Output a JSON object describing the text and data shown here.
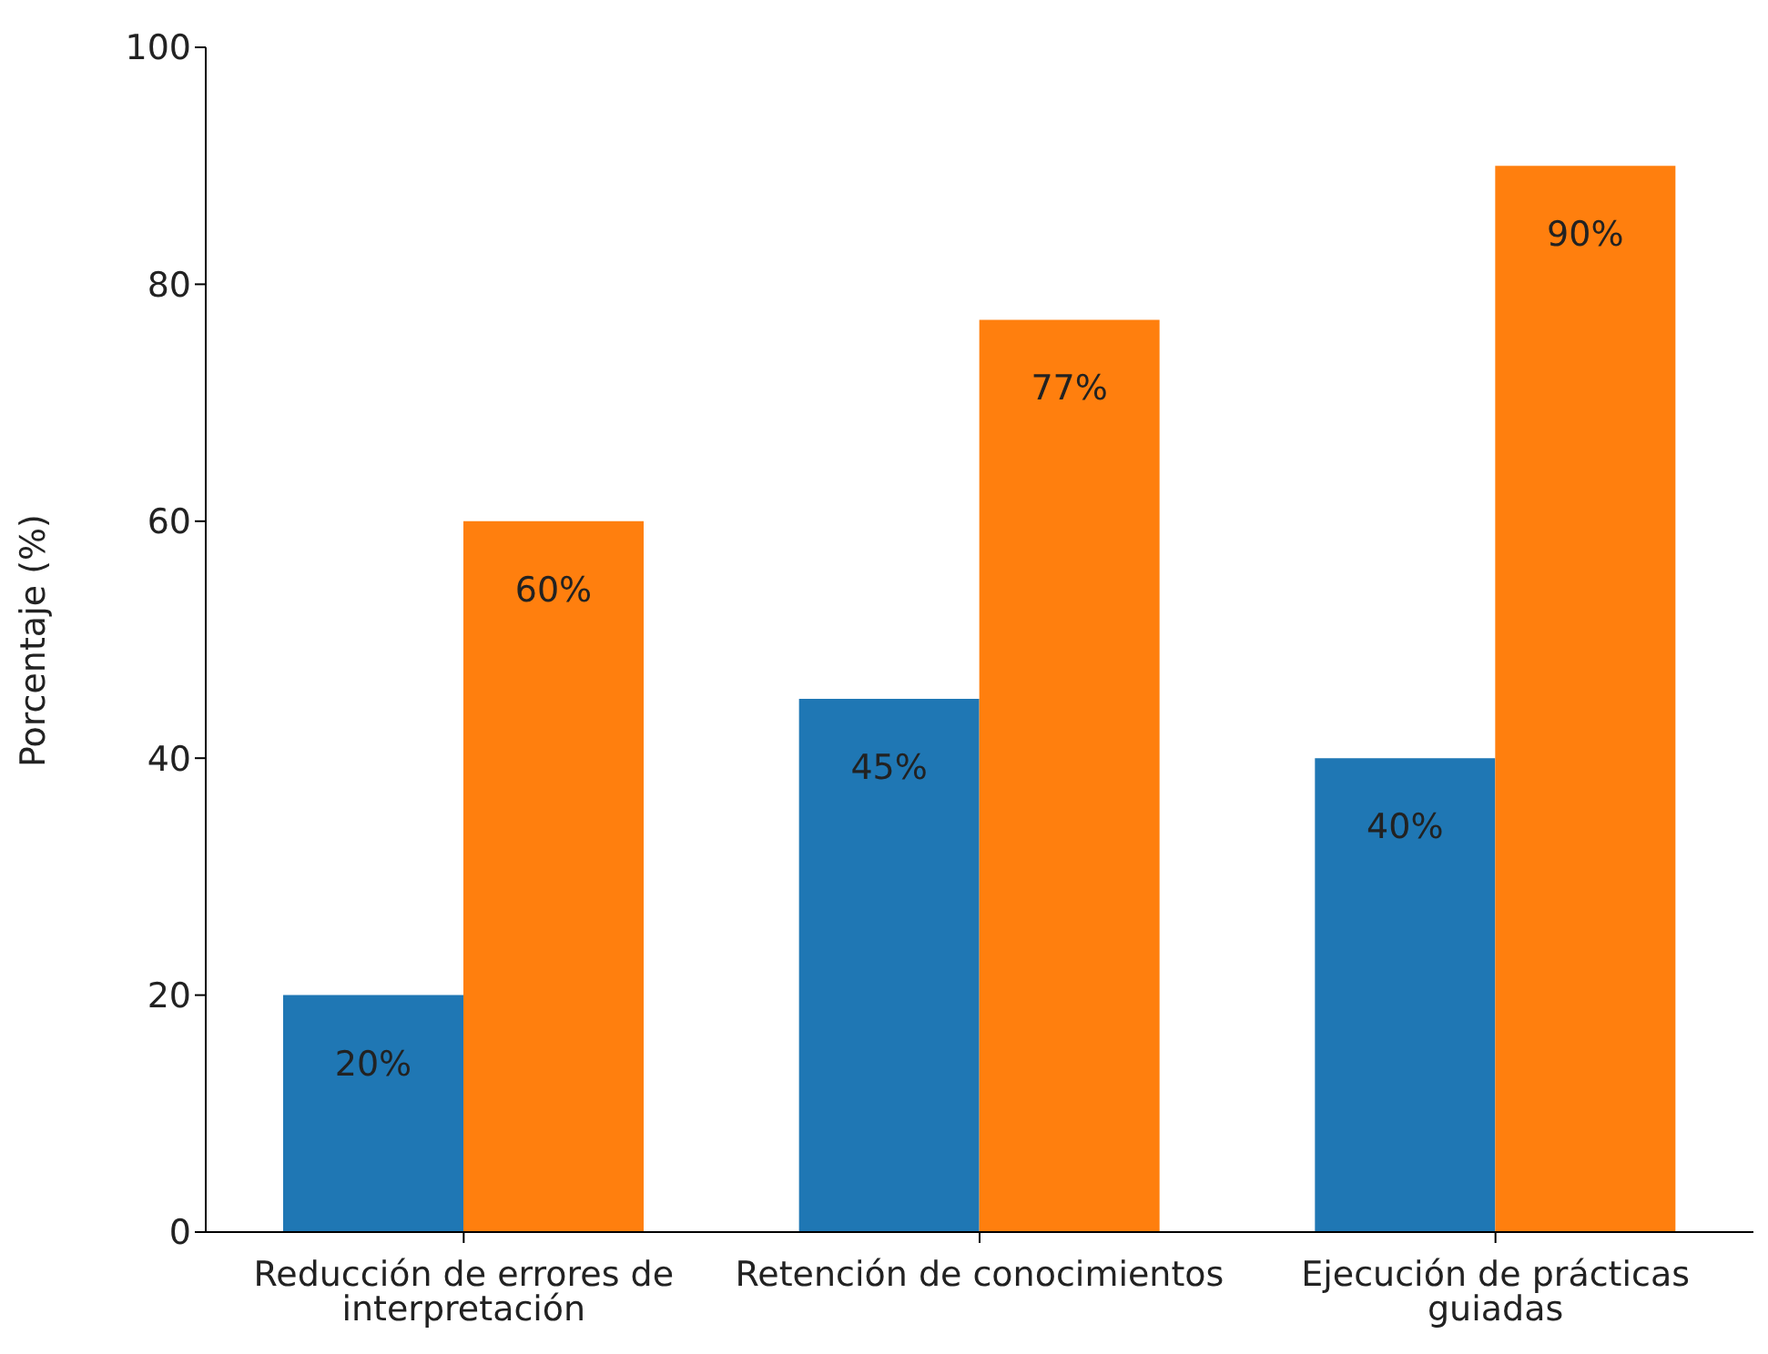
{
  "chart_data": {
    "type": "bar",
    "ylabel": "Porcentaje (%)",
    "categories": [
      "Reducción de errores de interpretación",
      "Retención de conocimientos",
      "Ejecución de prácticas guiadas"
    ],
    "series": [
      {
        "color": "#1f77b4",
        "values": [
          20,
          45,
          40
        ],
        "value_labels": [
          "20%",
          "45%",
          "40%"
        ]
      },
      {
        "color": "#ff7f0e",
        "values": [
          60,
          77,
          90
        ],
        "value_labels": [
          "60%",
          "77%",
          "90%"
        ]
      }
    ],
    "ylim": [
      0,
      100
    ],
    "yticks": [
      0,
      20,
      40,
      60,
      80,
      100
    ],
    "grid": false,
    "legend": false
  }
}
